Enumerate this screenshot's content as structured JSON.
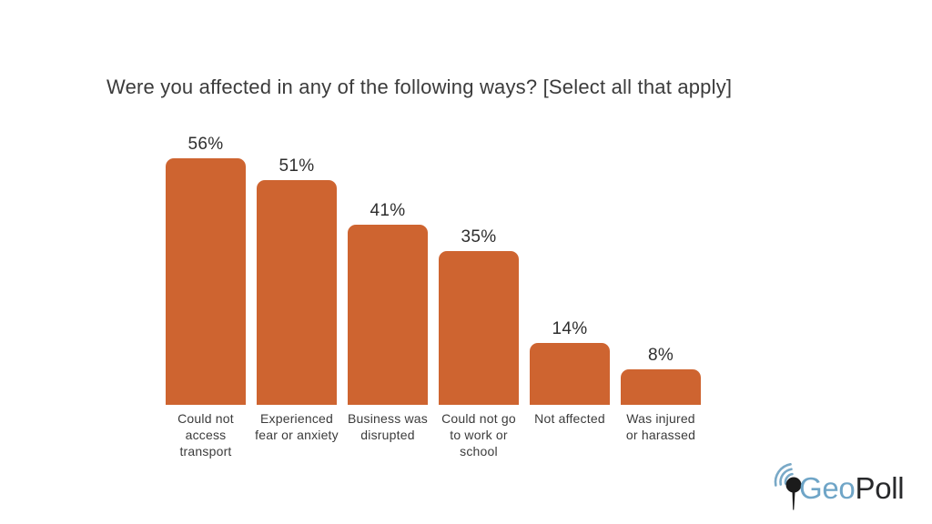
{
  "chart_data": {
    "type": "bar",
    "title": "Were you affected in any of the following ways? [Select all that apply]",
    "categories": [
      "Could not access transport",
      "Experienced fear or anxiety",
      "Business was disrupted",
      "Could not go to work or school",
      "Not affected",
      "Was injured or harassed"
    ],
    "values": [
      56,
      51,
      41,
      35,
      14,
      8
    ],
    "value_labels": [
      "56%",
      "51%",
      "41%",
      "35%",
      "14%",
      "8%"
    ],
    "category_label_lines": [
      [
        "Could not",
        "access",
        "transport"
      ],
      [
        "Experienced",
        "fear or anxiety"
      ],
      [
        "Business was",
        "disrupted"
      ],
      [
        "Could not go",
        "to work or",
        "school"
      ],
      [
        "Not affected"
      ],
      [
        "Was injured",
        "or harassed"
      ]
    ],
    "xlabel": "",
    "ylabel": "",
    "ylim": [
      0,
      60
    ],
    "grid": false,
    "legend": false,
    "orientation": "vertical",
    "bar_color": "#CE6430",
    "value_label_color": "#2e2e2e",
    "category_label_color": "#3b3b3b",
    "title_color": "#3b3b3b",
    "background_color": "#ffffff"
  },
  "logo": {
    "text_geo": "Geo",
    "text_poll": "Poll",
    "geo_color": "#6FA5C7",
    "poll_color": "#28292B",
    "icon": "signal-pin-icon",
    "icon_pin_color": "#1b1b1b",
    "icon_arc_color": "#79A9C7"
  }
}
